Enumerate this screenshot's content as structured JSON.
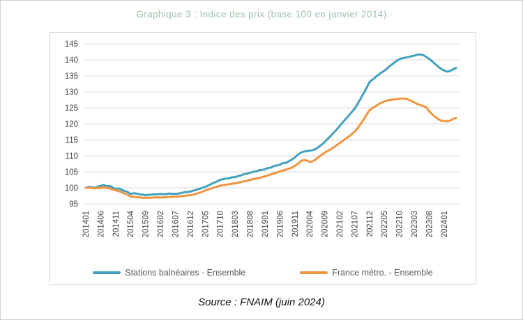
{
  "header": {
    "title": "Graphique 3 : Indice des prix (base 100 en janvier 2014)"
  },
  "footer": {
    "source": "Source : FNAIM (juin 2024)"
  },
  "colors": {
    "title_green": "#9cc3a8",
    "grid_gray": "#d9d9d9",
    "axis_text": "#404040",
    "stations_teal": "#41a0bd",
    "france_orange": "#f0943e"
  },
  "chart_data": {
    "type": "line",
    "title": "Graphique 3 : Indice des prix (base 100 en janvier 2014)",
    "xlabel": "",
    "ylabel": "",
    "ylim": [
      95,
      145
    ],
    "y_ticks": [
      95,
      100,
      105,
      110,
      115,
      120,
      125,
      130,
      135,
      140,
      145
    ],
    "grid": "horizontal",
    "grid_color": "#d9d9d9",
    "legend_position": "bottom",
    "x_start": "2014-01",
    "x_end": "2024-05",
    "x_frequency": "monthly",
    "x_label_every": 5,
    "x_tick_labels": [
      "201401",
      "201406",
      "201411",
      "201504",
      "201509",
      "201602",
      "201607",
      "201612",
      "201705",
      "201710",
      "201803",
      "201808",
      "201901",
      "201906",
      "201911",
      "202004",
      "202009",
      "202102",
      "202107",
      "202112",
      "202205",
      "202210",
      "202303",
      "202308",
      "202401"
    ],
    "series": [
      {
        "name": "Stations balnéaires - Ensemble",
        "color": "#41a0bd",
        "values": [
          100.0,
          100.3,
          100.2,
          100.0,
          100.4,
          100.6,
          100.9,
          100.5,
          100.6,
          100.1,
          99.6,
          99.8,
          99.4,
          99.0,
          98.7,
          98.1,
          98.3,
          98.2,
          98.0,
          97.9,
          97.7,
          97.8,
          97.9,
          98.0,
          98.0,
          98.1,
          98.0,
          98.1,
          98.2,
          98.1,
          98.1,
          98.2,
          98.4,
          98.6,
          98.7,
          98.8,
          99.1,
          99.4,
          99.7,
          100.0,
          100.3,
          100.7,
          101.2,
          101.6,
          102.0,
          102.5,
          102.7,
          102.9,
          103.0,
          103.3,
          103.3,
          103.7,
          103.9,
          104.3,
          104.4,
          104.7,
          105.0,
          105.1,
          105.5,
          105.6,
          105.8,
          106.2,
          106.3,
          106.8,
          107.0,
          107.2,
          107.7,
          107.8,
          108.3,
          108.8,
          109.5,
          110.3,
          111.0,
          111.3,
          111.5,
          111.6,
          111.8,
          112.1,
          112.8,
          113.5,
          114.3,
          115.3,
          116.2,
          117.2,
          118.2,
          119.3,
          120.4,
          121.5,
          122.5,
          123.6,
          124.7,
          126.2,
          127.8,
          129.5,
          131.2,
          133.0,
          133.8,
          134.6,
          135.3,
          136.0,
          136.6,
          137.4,
          138.2,
          138.9,
          139.6,
          140.2,
          140.5,
          140.7,
          140.9,
          141.1,
          141.3,
          141.6,
          141.7,
          141.5,
          140.9,
          140.3,
          139.5,
          138.7,
          137.9,
          137.2,
          136.6,
          136.3,
          136.5,
          137.0,
          137.5
        ]
      },
      {
        "name": "France métro. - Ensemble",
        "color": "#f0943e",
        "values": [
          100.0,
          100.0,
          99.9,
          99.8,
          100.0,
          99.9,
          100.2,
          100.0,
          99.8,
          99.5,
          99.2,
          99.0,
          98.6,
          98.2,
          97.8,
          97.3,
          97.2,
          97.1,
          97.0,
          96.9,
          96.9,
          96.9,
          96.9,
          97.0,
          97.0,
          97.0,
          97.0,
          97.1,
          97.1,
          97.2,
          97.2,
          97.3,
          97.4,
          97.5,
          97.6,
          97.7,
          97.9,
          98.2,
          98.4,
          98.8,
          99.2,
          99.5,
          99.8,
          100.1,
          100.4,
          100.7,
          100.8,
          101.0,
          101.1,
          101.3,
          101.4,
          101.6,
          101.8,
          102.0,
          102.2,
          102.5,
          102.7,
          102.9,
          103.1,
          103.3,
          103.6,
          103.9,
          104.2,
          104.5,
          104.8,
          105.1,
          105.4,
          105.7,
          106.0,
          106.3,
          106.8,
          107.5,
          108.3,
          108.7,
          108.5,
          108.1,
          108.3,
          108.9,
          109.6,
          110.3,
          111.0,
          111.5,
          112.0,
          112.6,
          113.3,
          114.0,
          114.6,
          115.3,
          116.0,
          116.7,
          117.5,
          118.6,
          119.9,
          121.3,
          122.8,
          124.2,
          124.9,
          125.5,
          126.1,
          126.6,
          127.0,
          127.3,
          127.5,
          127.6,
          127.7,
          127.8,
          127.9,
          127.8,
          127.6,
          127.2,
          126.7,
          126.2,
          125.9,
          125.6,
          125.2,
          123.9,
          123.0,
          122.2,
          121.5,
          121.0,
          120.9,
          120.8,
          121.0,
          121.5,
          121.9
        ]
      }
    ]
  }
}
